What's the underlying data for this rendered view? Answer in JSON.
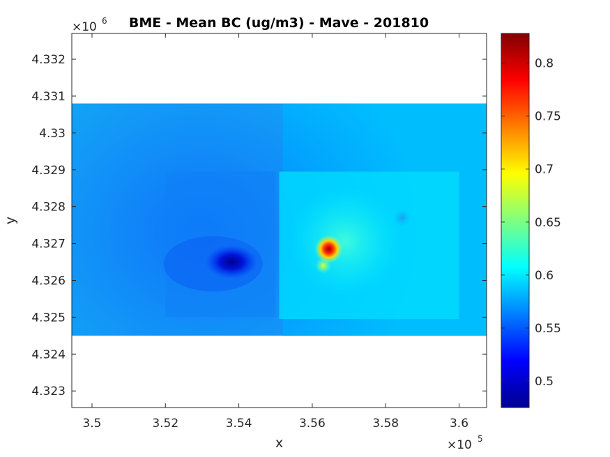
{
  "chart_data": {
    "type": "heatmap",
    "title": "BME - Mean BC (ug/m3) -  Mave - 201810",
    "xlabel": "x",
    "ylabel": "y",
    "x_exponent": {
      "base": "×10",
      "power": "5"
    },
    "y_exponent": {
      "base": "×10",
      "power": "6"
    },
    "xlim": [
      349450,
      360750
    ],
    "ylim": [
      4322550,
      4332700
    ],
    "x_ticks": [
      {
        "value": 350000,
        "label": "3.5"
      },
      {
        "value": 352000,
        "label": "3.52"
      },
      {
        "value": 354000,
        "label": "3.54"
      },
      {
        "value": 356000,
        "label": "3.56"
      },
      {
        "value": 358000,
        "label": "3.58"
      },
      {
        "value": 360000,
        "label": "3.6"
      }
    ],
    "y_ticks": [
      {
        "value": 4323000,
        "label": "4.323"
      },
      {
        "value": 4324000,
        "label": "4.324"
      },
      {
        "value": 4325000,
        "label": "4.325"
      },
      {
        "value": 4326000,
        "label": "4.326"
      },
      {
        "value": 4327000,
        "label": "4.327"
      },
      {
        "value": 4328000,
        "label": "4.328"
      },
      {
        "value": 4329000,
        "label": "4.329"
      },
      {
        "value": 4330000,
        "label": "4.33"
      },
      {
        "value": 4331000,
        "label": "4.331"
      },
      {
        "value": 4332000,
        "label": "4.332"
      }
    ],
    "data_extent": {
      "x": [
        349450,
        360750
      ],
      "y": [
        4324500,
        4330800
      ]
    },
    "colormap": "jet",
    "colorbar": {
      "range": [
        0.475,
        0.828
      ],
      "ticks": [
        {
          "value": 0.5,
          "label": "0.5"
        },
        {
          "value": 0.55,
          "label": "0.55"
        },
        {
          "value": 0.6,
          "label": "0.6"
        },
        {
          "value": 0.65,
          "label": "0.65"
        },
        {
          "value": 0.7,
          "label": "0.7"
        },
        {
          "value": 0.75,
          "label": "0.75"
        },
        {
          "value": 0.8,
          "label": "0.8"
        }
      ]
    },
    "field": {
      "background": 0.575,
      "features": [
        {
          "kind": "low",
          "x": 353800,
          "y": 4326500,
          "value": 0.48
        },
        {
          "kind": "high",
          "x": 356450,
          "y": 4326850,
          "value": 0.82
        },
        {
          "kind": "high",
          "x": 356300,
          "y": 4326400,
          "value": 0.67
        },
        {
          "kind": "low",
          "x": 358450,
          "y": 4327700,
          "value": 0.56
        }
      ]
    }
  }
}
